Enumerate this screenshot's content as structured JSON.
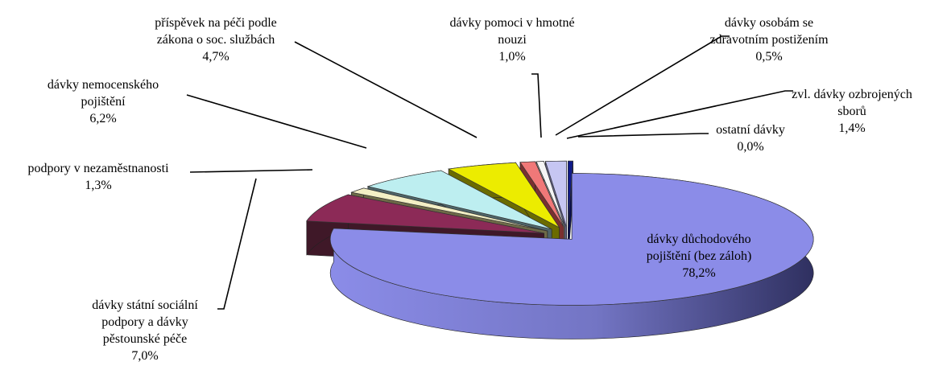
{
  "chart_data": {
    "type": "pie",
    "variant": "3d-exploded",
    "slices": [
      {
        "label": "dávky důchodového pojištění (bez záloh)",
        "lines": [
          "dávky důchodového",
          "pojištění (bez záloh)"
        ],
        "value": 78.2,
        "value_text": "78,2%",
        "color": "#8b8ce8",
        "side_color": "#4b4f8c",
        "explode": 0.1
      },
      {
        "label": "dávky státní sociální podpory a dávky pěstounské péče",
        "lines": [
          "dávky státní sociální",
          "podpory a dávky",
          "pěstounské péče"
        ],
        "value": 7.0,
        "value_text": "7,0%",
        "color": "#8c2a57",
        "side_color": "#3f1828",
        "explode": 0.4
      },
      {
        "label": "podpory v nezaměstnanosti",
        "lines": [
          "podpory v nezaměstnanosti"
        ],
        "value": 1.3,
        "value_text": "1,3%",
        "color": "#f3efc5",
        "side_color": "#6e6a48",
        "explode": 0.4
      },
      {
        "label": "dávky nemocenského pojištění",
        "lines": [
          "dávky nemocenského",
          "pojištění"
        ],
        "value": 6.2,
        "value_text": "6,2%",
        "color": "#bdeef0",
        "side_color": "#4f6569",
        "explode": 0.4
      },
      {
        "label": "příspěvek na péči podle zákona o soc. službách",
        "lines": [
          "příspěvek na péči podle",
          "zákona o soc. službách"
        ],
        "value": 4.7,
        "value_text": "4,7%",
        "color": "#ecec00",
        "side_color": "#6b6b00",
        "explode": 0.4
      },
      {
        "label": "dávky pomoci v hmotné nouzi",
        "lines": [
          "dávky pomoci v hmotné",
          "nouzi"
        ],
        "value": 1.0,
        "value_text": "1,0%",
        "color": "#f07878",
        "side_color": "#7a3030",
        "explode": 0.4
      },
      {
        "label": "dávky osobám se zdravotním postižením",
        "lines": [
          "dávky osobám se",
          "zdravotním postižením"
        ],
        "value": 0.5,
        "value_text": "0,5%",
        "color": "#f5f5f5",
        "side_color": "#8a8a8a",
        "explode": 0.4
      },
      {
        "label": "zvl. dávky ozbrojených sborů",
        "lines": [
          "zvl. dávky ozbrojených",
          "sborů"
        ],
        "value": 1.4,
        "value_text": "1,4%",
        "color": "#c6c6f2",
        "side_color": "#62628c",
        "explode": 0.4
      },
      {
        "label": "ostatní dávky",
        "lines": [
          "ostatní dávky"
        ],
        "value": 0.0,
        "value_text": "0,0%",
        "color": "#0f1a8a",
        "side_color": "#080e50",
        "explode": 0.4
      }
    ],
    "legend": "none"
  }
}
